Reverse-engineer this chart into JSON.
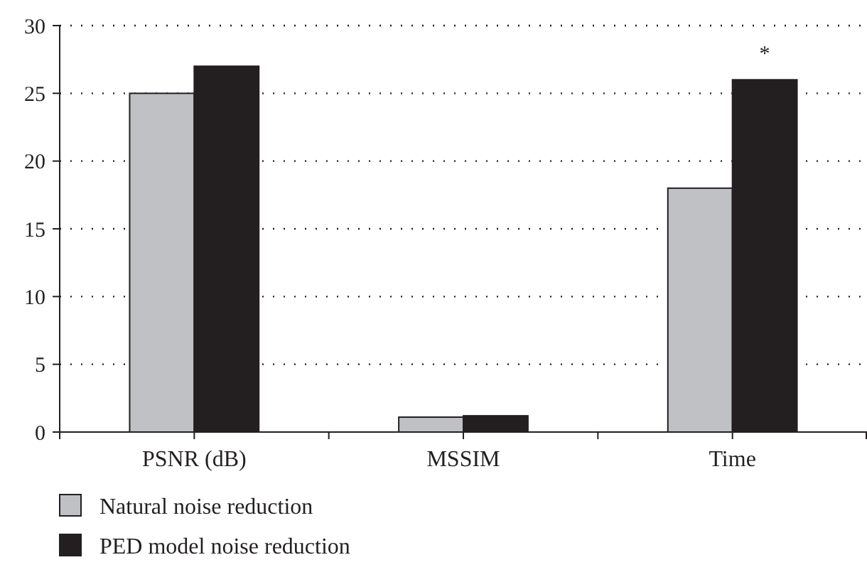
{
  "chart_data": {
    "type": "bar",
    "categories": [
      "PSNR (dB)",
      "MSSIM",
      "Time"
    ],
    "series": [
      {
        "name": "Natural noise reduction",
        "color": "#c0c1c4",
        "values": [
          25,
          1.1,
          18
        ]
      },
      {
        "name": "PED model noise reduction",
        "color": "#231f20",
        "values": [
          27,
          1.2,
          26
        ]
      }
    ],
    "ylim": [
      0,
      30
    ],
    "yticks": [
      0,
      5,
      10,
      15,
      20,
      25,
      30
    ],
    "grid": "y",
    "legend": "bottom left",
    "annotations": [
      {
        "text": "*",
        "x": "Time",
        "y": 26
      }
    ]
  }
}
